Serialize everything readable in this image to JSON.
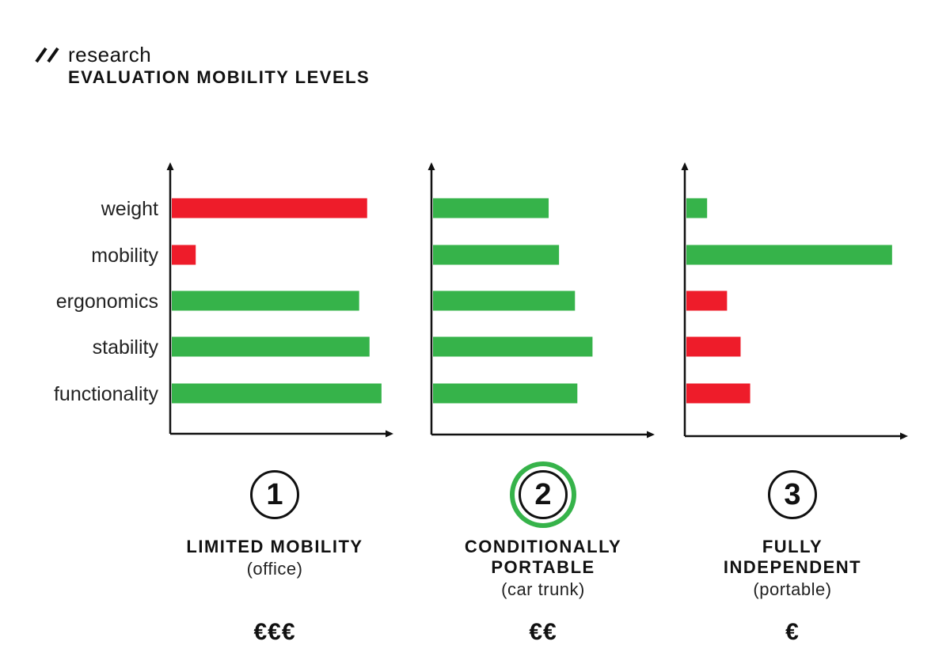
{
  "header": {
    "kicker": "research",
    "title": "EVALUATION MOBILITY LEVELS"
  },
  "colors": {
    "positive": "#36b34a",
    "negative": "#ee1c2a",
    "axis": "#111111",
    "highlight_ring": "#36b34a"
  },
  "chart_data": [
    {
      "type": "bar",
      "orientation": "horizontal",
      "categories": [
        "weight",
        "mobility",
        "ergonomics",
        "stability",
        "functionality"
      ],
      "values": [
        245,
        30,
        235,
        248,
        263
      ],
      "status": [
        "negative",
        "negative",
        "positive",
        "positive",
        "positive"
      ],
      "xlim": [
        0,
        280
      ]
    },
    {
      "type": "bar",
      "orientation": "horizontal",
      "categories": [
        "weight",
        "mobility",
        "ergonomics",
        "stability",
        "functionality"
      ],
      "values": [
        145,
        158,
        178,
        200,
        181
      ],
      "status": [
        "positive",
        "positive",
        "positive",
        "positive",
        "positive"
      ],
      "xlim": [
        0,
        280
      ]
    },
    {
      "type": "bar",
      "orientation": "horizontal",
      "categories": [
        "weight",
        "mobility",
        "ergonomics",
        "stability",
        "functionality"
      ],
      "values": [
        26,
        258,
        51,
        68,
        80
      ],
      "status": [
        "positive",
        "positive",
        "negative",
        "negative",
        "negative"
      ],
      "xlim": [
        0,
        280
      ]
    }
  ],
  "levels": [
    {
      "number": "1",
      "title_lines": [
        "LIMITED MOBILITY"
      ],
      "subtitle": "(office)",
      "price": "€€€",
      "highlighted": false
    },
    {
      "number": "2",
      "title_lines": [
        "CONDITIONALLY",
        "PORTABLE"
      ],
      "subtitle": "(car trunk)",
      "price": "€€",
      "highlighted": true
    },
    {
      "number": "3",
      "title_lines": [
        "FULLY",
        "INDEPENDENT"
      ],
      "subtitle": "(portable)",
      "price": "€",
      "highlighted": false
    }
  ]
}
